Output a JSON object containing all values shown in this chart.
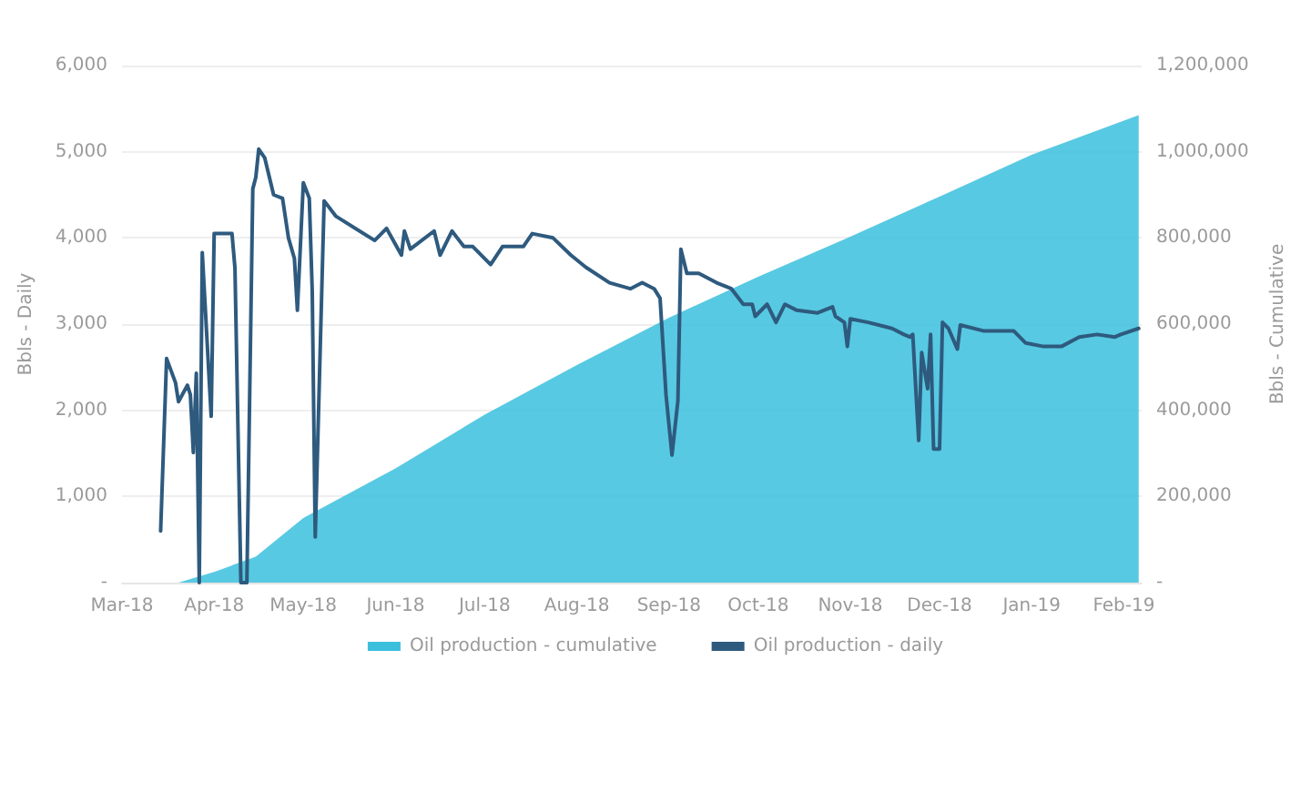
{
  "chart_data": {
    "type": "line",
    "xlabel": null,
    "ylabel": "Bbls - Daily",
    "y2label": "Bbls - Cumulative",
    "xlim": [
      "2018-03-01",
      "2019-02-07"
    ],
    "xticks": [
      {
        "value": "2018-03-01",
        "label": "Mar-18"
      },
      {
        "value": "2018-04-01",
        "label": "Apr-18"
      },
      {
        "value": "2018-05-01",
        "label": "May-18"
      },
      {
        "value": "2018-06-01",
        "label": "Jun-18"
      },
      {
        "value": "2018-07-01",
        "label": "Jul-18"
      },
      {
        "value": "2018-08-01",
        "label": "Aug-18"
      },
      {
        "value": "2018-09-01",
        "label": "Sep-18"
      },
      {
        "value": "2018-10-01",
        "label": "Oct-18"
      },
      {
        "value": "2018-11-01",
        "label": "Nov-18"
      },
      {
        "value": "2018-12-01",
        "label": "Dec-18"
      },
      {
        "value": "2019-01-01",
        "label": "Jan-19"
      },
      {
        "value": "2019-02-01",
        "label": "Feb-19"
      }
    ],
    "ylim": [
      0,
      6000
    ],
    "yticks": [
      {
        "value": 0,
        "label": "-"
      },
      {
        "value": 1000,
        "label": "1,000"
      },
      {
        "value": 2000,
        "label": "2,000"
      },
      {
        "value": 3000,
        "label": "3,000"
      },
      {
        "value": 4000,
        "label": "4,000"
      },
      {
        "value": 5000,
        "label": "5,000"
      },
      {
        "value": 6000,
        "label": "6,000"
      }
    ],
    "y2lim": [
      0,
      1200000
    ],
    "y2ticks": [
      {
        "value": 0,
        "label": "-"
      },
      {
        "value": 200000,
        "label": "200,000"
      },
      {
        "value": 400000,
        "label": "400,000"
      },
      {
        "value": 600000,
        "label": "600,000"
      },
      {
        "value": 800000,
        "label": "800,000"
      },
      {
        "value": 1000000,
        "label": "1,000,000"
      },
      {
        "value": 1200000,
        "label": "1,200,000"
      }
    ],
    "grid": "y",
    "legend": "bottom",
    "marker": "none",
    "series": [
      {
        "name": "Oil production - cumulative",
        "type": "area",
        "axis": "y2",
        "color": "#3bbfdd",
        "x": [
          "2018-03-20",
          "2018-04-01",
          "2018-04-15",
          "2018-05-01",
          "2018-06-01",
          "2018-07-01",
          "2018-08-01",
          "2018-09-01",
          "2018-10-01",
          "2018-11-01",
          "2018-12-01",
          "2019-01-01",
          "2019-02-06"
        ],
        "values": [
          0,
          25000,
          60000,
          150000,
          265000,
          390000,
          505000,
          615000,
          710000,
          803000,
          896000,
          993000,
          1085000
        ]
      },
      {
        "name": "Oil production - daily",
        "color": "#2e5a7e",
        "x": [
          "2018-03-14",
          "2018-03-16",
          "2018-03-19",
          "2018-03-20",
          "2018-03-23",
          "2018-03-24",
          "2018-03-25",
          "2018-03-26",
          "2018-03-27",
          "2018-03-28",
          "2018-03-31",
          "2018-04-01",
          "2018-04-07",
          "2018-04-08",
          "2018-04-10",
          "2018-04-12",
          "2018-04-14",
          "2018-04-15",
          "2018-04-16",
          "2018-04-18",
          "2018-04-21",
          "2018-04-24",
          "2018-04-26",
          "2018-04-28",
          "2018-04-29",
          "2018-05-01",
          "2018-05-03",
          "2018-05-04",
          "2018-05-05",
          "2018-05-08",
          "2018-05-12",
          "2018-05-25",
          "2018-05-29",
          "2018-06-03",
          "2018-06-04",
          "2018-06-06",
          "2018-06-14",
          "2018-06-16",
          "2018-06-20",
          "2018-06-24",
          "2018-06-27",
          "2018-07-03",
          "2018-07-07",
          "2018-07-14",
          "2018-07-17",
          "2018-07-24",
          "2018-07-30",
          "2018-08-04",
          "2018-08-12",
          "2018-08-19",
          "2018-08-23",
          "2018-08-27",
          "2018-08-29",
          "2018-08-31",
          "2018-09-02",
          "2018-09-04",
          "2018-09-05",
          "2018-09-07",
          "2018-09-11",
          "2018-09-17",
          "2018-09-22",
          "2018-09-26",
          "2018-09-29",
          "2018-09-30",
          "2018-10-04",
          "2018-10-07",
          "2018-10-10",
          "2018-10-14",
          "2018-10-21",
          "2018-10-26",
          "2018-10-27",
          "2018-10-30",
          "2018-10-31",
          "2018-11-01",
          "2018-11-07",
          "2018-11-15",
          "2018-11-19",
          "2018-11-21",
          "2018-11-22",
          "2018-11-24",
          "2018-11-25",
          "2018-11-27",
          "2018-11-28",
          "2018-11-29",
          "2018-12-01",
          "2018-12-02",
          "2018-12-04",
          "2018-12-07",
          "2018-12-08",
          "2018-12-16",
          "2018-12-26",
          "2018-12-30",
          "2019-01-05",
          "2019-01-11",
          "2019-01-17",
          "2019-01-23",
          "2019-01-29",
          "2019-01-31",
          "2019-02-06"
        ],
        "values": [
          600,
          2600,
          2320,
          2100,
          2290,
          2180,
          1510,
          2430,
          0,
          3830,
          1930,
          4050,
          4050,
          3650,
          0,
          0,
          4570,
          4700,
          5030,
          4930,
          4500,
          4460,
          4000,
          3760,
          3160,
          4640,
          4460,
          3380,
          530,
          4430,
          4250,
          3970,
          4110,
          3800,
          4080,
          3870,
          4080,
          3800,
          4080,
          3900,
          3900,
          3690,
          3900,
          3900,
          4050,
          4000,
          3800,
          3660,
          3480,
          3410,
          3480,
          3410,
          3300,
          2180,
          1480,
          2110,
          3870,
          3590,
          3590,
          3480,
          3410,
          3230,
          3230,
          3090,
          3230,
          3020,
          3230,
          3160,
          3130,
          3200,
          3090,
          3020,
          2740,
          3060,
          3020,
          2950,
          2880,
          2850,
          2880,
          1650,
          2670,
          2250,
          2880,
          1550,
          1550,
          3020,
          2950,
          2710,
          2990,
          2920,
          2920,
          2780,
          2740,
          2740,
          2850,
          2880,
          2850,
          2880,
          2950
        ]
      }
    ]
  }
}
